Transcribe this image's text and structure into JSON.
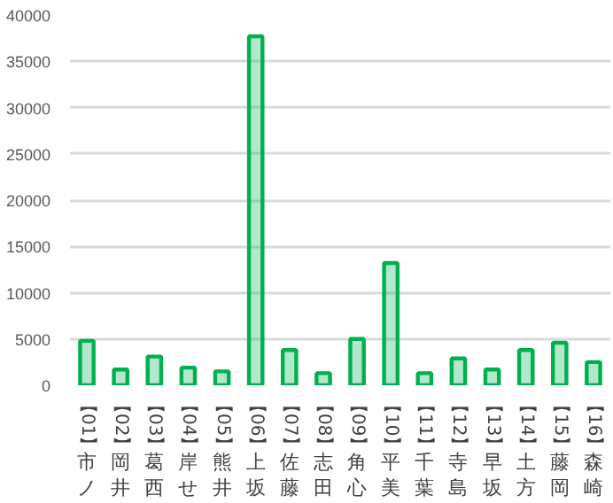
{
  "chart_data": {
    "type": "bar",
    "categories": [
      "【01】市ノ",
      "【02】岡井",
      "【03】葛西",
      "【04】岸せ",
      "【05】熊井",
      "【06】上坂",
      "【07】佐藤",
      "【08】志田",
      "【09】角心",
      "【10】平美",
      "【11】千葉",
      "【12】寺島",
      "【13】早坂",
      "【14】土方",
      "【15】藤岡",
      "【16】森崎"
    ],
    "values": [
      4800,
      1700,
      3100,
      1900,
      1500,
      37700,
      3800,
      1300,
      5000,
      13200,
      1300,
      2900,
      1700,
      3800,
      4600,
      2500
    ],
    "color": "#00b050",
    "ylim": [
      0,
      40000
    ],
    "yticks": [
      0,
      5000,
      10000,
      15000,
      20000,
      25000,
      30000,
      35000,
      40000
    ],
    "grid": "y"
  }
}
